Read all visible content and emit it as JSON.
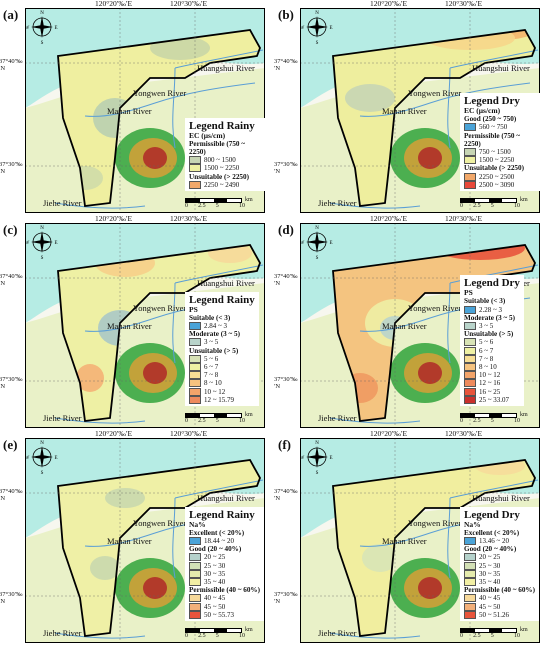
{
  "panels": [
    {
      "label": "(a)",
      "legend_title": "Legend Rainy",
      "param": "EC (μs/cm)",
      "fill": "#efefa0",
      "blobs": [
        {
          "c": "#c9d6a6",
          "x": 155,
          "y": 40,
          "rx": 30,
          "ry": 12
        },
        {
          "c": "#b9cfb0",
          "x": 90,
          "y": 110,
          "rx": 22,
          "ry": 20
        },
        {
          "c": "#cfdba8",
          "x": 60,
          "y": 170,
          "rx": 18,
          "ry": 12
        }
      ],
      "groups": [
        {
          "cat": "Permissible (750 ~ 2250)",
          "items": [
            {
              "color": "#c7d5b4",
              "text": "800 ~ 1500"
            },
            {
              "color": "#eef0a2",
              "text": "1500 ~ 2250"
            }
          ]
        },
        {
          "cat": "Unsuitable (> 2250)",
          "items": [
            {
              "color": "#f2a86a",
              "text": "2250 ~ 2490"
            }
          ]
        }
      ]
    },
    {
      "label": "(b)",
      "legend_title": "Legend Dry",
      "param": "EC (μs/cm)",
      "fill": "#eeee9e",
      "blobs": [
        {
          "c": "#f3b36c",
          "x": 200,
          "y": 22,
          "rx": 35,
          "ry": 10
        },
        {
          "c": "#f6d68a",
          "x": 170,
          "y": 30,
          "rx": 45,
          "ry": 12
        },
        {
          "c": "#c6d5b4",
          "x": 70,
          "y": 90,
          "rx": 25,
          "ry": 14
        }
      ],
      "groups": [
        {
          "cat": "Good (250 ~ 750)",
          "items": [
            {
              "color": "#4aa3d8",
              "text": "560 ~ 750"
            }
          ]
        },
        {
          "cat": "Permissible (750 ~ 2250)",
          "items": [
            {
              "color": "#c7d5b4",
              "text": "750 ~ 1500"
            },
            {
              "color": "#eef0a2",
              "text": "1500 ~ 2250"
            }
          ]
        },
        {
          "cat": "Unsuitable (> 2250)",
          "items": [
            {
              "color": "#f2a86a",
              "text": "2250 ~ 2500"
            },
            {
              "color": "#e8483a",
              "text": "2500 ~ 3090"
            }
          ]
        }
      ]
    },
    {
      "label": "(c)",
      "legend_title": "Legend Rainy",
      "param": "PS",
      "fill": "#eef0a4",
      "blobs": [
        {
          "c": "#f6cf8a",
          "x": 100,
          "y": 40,
          "rx": 30,
          "ry": 14
        },
        {
          "c": "#aac8c6",
          "x": 95,
          "y": 105,
          "rx": 22,
          "ry": 18
        },
        {
          "c": "#f4b176",
          "x": 65,
          "y": 155,
          "rx": 14,
          "ry": 14
        },
        {
          "c": "#f6d99a",
          "x": 205,
          "y": 30,
          "rx": 22,
          "ry": 10
        }
      ],
      "groups": [
        {
          "cat": "Suitable (< 3)",
          "items": [
            {
              "color": "#4aa3d8",
              "text": "2.84 ~ 3"
            }
          ]
        },
        {
          "cat": "Moderate (3 ~ 5)",
          "items": [
            {
              "color": "#b9d4cb",
              "text": "3 ~ 5"
            }
          ]
        },
        {
          "cat": "Unsuitable (> 5)",
          "items": [
            {
              "color": "#d8e3b6",
              "text": "5 ~ 6"
            },
            {
              "color": "#eef0a4",
              "text": "6 ~ 7"
            },
            {
              "color": "#f7de95",
              "text": "7 ~ 8"
            },
            {
              "color": "#f6c37f",
              "text": "8 ~ 10"
            },
            {
              "color": "#f3a46a",
              "text": "10 ~ 12"
            },
            {
              "color": "#ee8a5d",
              "text": "12 ~ 15.79"
            }
          ]
        }
      ]
    },
    {
      "label": "(d)",
      "legend_title": "Legend Dry",
      "param": "PS",
      "fill": "#f4c480",
      "blobs": [
        {
          "c": "#e8543c",
          "x": 180,
          "y": 25,
          "rx": 45,
          "ry": 12
        },
        {
          "c": "#eef0a4",
          "x": 95,
          "y": 100,
          "rx": 30,
          "ry": 24
        },
        {
          "c": "#b9d4cb",
          "x": 95,
          "y": 105,
          "rx": 15,
          "ry": 12
        },
        {
          "c": "#f09a60",
          "x": 60,
          "y": 165,
          "rx": 18,
          "ry": 15
        }
      ],
      "groups": [
        {
          "cat": "Suitable (< 3)",
          "items": [
            {
              "color": "#4aa3d8",
              "text": "2.28 ~ 3"
            }
          ]
        },
        {
          "cat": "Moderate (3 ~ 5)",
          "items": [
            {
              "color": "#b9d4cb",
              "text": "3 ~ 5"
            }
          ]
        },
        {
          "cat": "Unsuitable (> 5)",
          "items": [
            {
              "color": "#d8e3b6",
              "text": "5 ~ 6"
            },
            {
              "color": "#eef0a4",
              "text": "6 ~ 7"
            },
            {
              "color": "#f7de95",
              "text": "7 ~ 8"
            },
            {
              "color": "#f6c37f",
              "text": "8 ~ 10"
            },
            {
              "color": "#f3a46a",
              "text": "10 ~ 12"
            },
            {
              "color": "#ee8a5d",
              "text": "12 ~ 16"
            },
            {
              "color": "#e8543c",
              "text": "16 ~ 25"
            },
            {
              "color": "#c9302c",
              "text": "25 ~ 33.07"
            }
          ]
        }
      ]
    },
    {
      "label": "(e)",
      "legend_title": "Legend Rainy",
      "param": "Na%",
      "fill": "#eff0a6",
      "blobs": [
        {
          "c": "#c9d8ae",
          "x": 100,
          "y": 60,
          "rx": 20,
          "ry": 10
        },
        {
          "c": "#c9d8ae",
          "x": 80,
          "y": 130,
          "rx": 15,
          "ry": 12
        }
      ],
      "groups": [
        {
          "cat": "Excellent (< 20%)",
          "items": [
            {
              "color": "#4aa3d8",
              "text": "18.44 ~ 20"
            }
          ]
        },
        {
          "cat": "Good (20 ~ 40%)",
          "items": [
            {
              "color": "#b5d2cc",
              "text": "20 ~ 25"
            },
            {
              "color": "#d3e0b6",
              "text": "25 ~ 30"
            },
            {
              "color": "#e5ebad",
              "text": "30 ~ 35"
            },
            {
              "color": "#f2efa4",
              "text": "35 ~ 40"
            }
          ]
        },
        {
          "cat": "Permissible (40 ~ 60%)",
          "items": [
            {
              "color": "#f7d99a",
              "text": "40 ~ 45"
            },
            {
              "color": "#f3b07a",
              "text": "45 ~ 50"
            },
            {
              "color": "#e8543c",
              "text": "50 ~ 55.73"
            }
          ]
        }
      ]
    },
    {
      "label": "(f)",
      "legend_title": "Legend Dry",
      "param": "Na%",
      "fill": "#f1ee9f",
      "blobs": [
        {
          "c": "#f6dc9a",
          "x": 200,
          "y": 28,
          "rx": 25,
          "ry": 9
        },
        {
          "c": "#d8e4b6",
          "x": 80,
          "y": 120,
          "rx": 18,
          "ry": 14
        }
      ],
      "groups": [
        {
          "cat": "Excellent (< 20%)",
          "items": [
            {
              "color": "#4aa3d8",
              "text": "13.46 ~ 20"
            }
          ]
        },
        {
          "cat": "Good (20 ~ 40%)",
          "items": [
            {
              "color": "#b5d2cc",
              "text": "20 ~ 25"
            },
            {
              "color": "#d3e0b6",
              "text": "25 ~ 30"
            },
            {
              "color": "#e5ebad",
              "text": "30 ~ 35"
            },
            {
              "color": "#f2efa4",
              "text": "35 ~ 40"
            }
          ]
        },
        {
          "cat": "Permissible (40 ~ 60%)",
          "items": [
            {
              "color": "#f7d99a",
              "text": "40 ~ 45"
            },
            {
              "color": "#f3b07a",
              "text": "45 ~ 50"
            },
            {
              "color": "#e8543c",
              "text": "50 ~ 51.26"
            }
          ]
        }
      ]
    }
  ],
  "coords": {
    "lon1": "120°20′‰′E",
    "lon2": "120°30′‰′E",
    "lat1": "37°40′‰′N",
    "lat2": "37°30′‰′N"
  },
  "rivers": {
    "huangshui": "Huangshui River",
    "yongwen": "Yongwen River",
    "manan": "Manan River",
    "jiehe": "Jiehe River"
  },
  "scale": {
    "ticks": [
      "0",
      "2.5",
      "5",
      "",
      "10"
    ],
    "unit": "km"
  },
  "compass": {
    "n": "N",
    "s": "S",
    "e": "E",
    "w": "W"
  },
  "colors": {
    "sea": "#b6ece4",
    "land_outline": "#000000",
    "river": "#5a9ed6",
    "background": "#ffffff"
  }
}
